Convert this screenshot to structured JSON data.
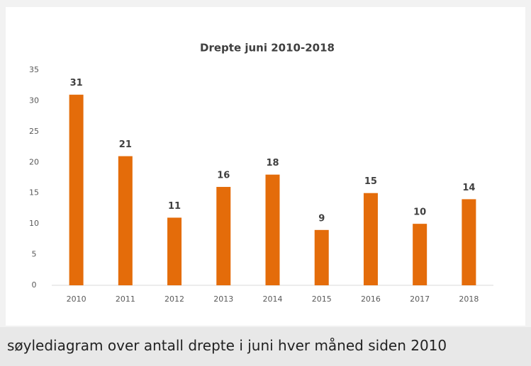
{
  "chart_data": {
    "type": "bar",
    "title": "Drepte juni 2010-2018",
    "categories": [
      "2010",
      "2011",
      "2012",
      "2013",
      "2014",
      "2015",
      "2016",
      "2017",
      "2018"
    ],
    "values": [
      31,
      21,
      11,
      16,
      18,
      9,
      15,
      10,
      14
    ],
    "color": "#e46c0a",
    "ylim": [
      0,
      35
    ],
    "yticks": [
      0,
      5,
      10,
      15,
      20,
      25,
      30,
      35
    ],
    "grid": false
  },
  "caption": "søylediagram over antall drepte i juni hver måned siden 2010"
}
